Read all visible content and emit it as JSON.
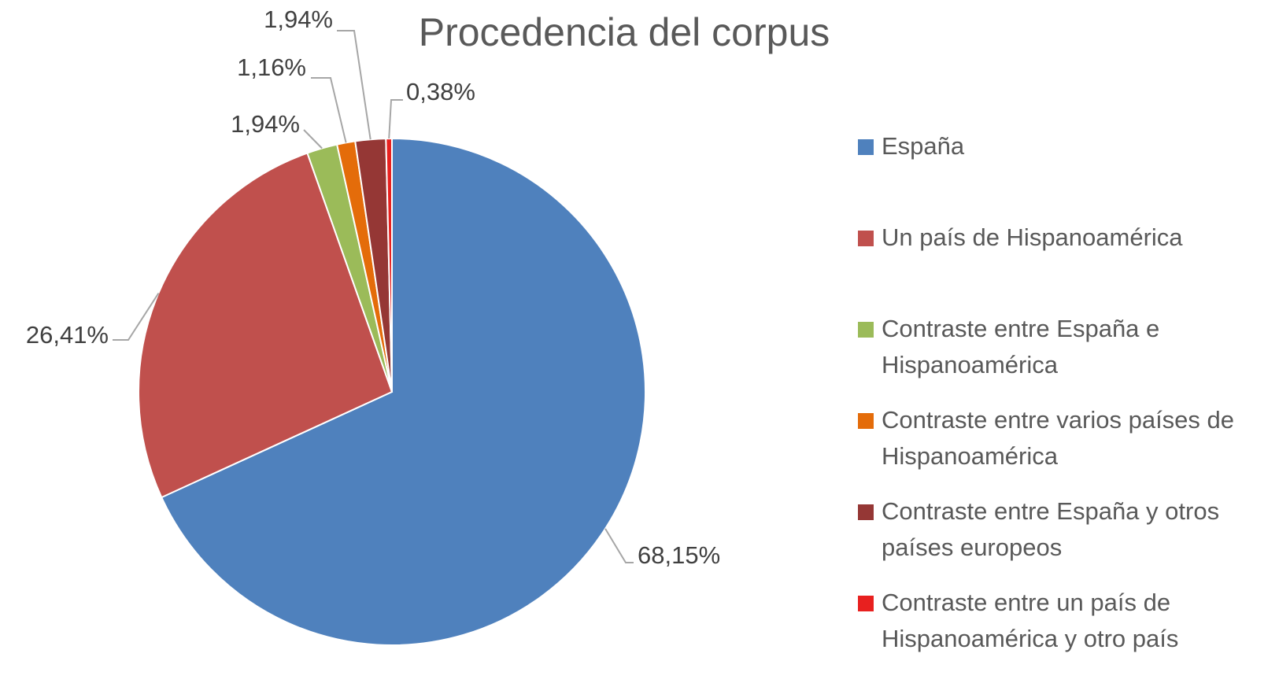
{
  "chart_data": {
    "type": "pie",
    "title": "Procedencia del corpus",
    "categories": [
      "España",
      "Un país de Hispanoamérica",
      "Contraste entre España e Hispanoamérica",
      "Contraste entre varios países de Hispanoamérica",
      "Contraste entre España y otros países europeos",
      "Contraste entre un país de Hispanoamérica y otro país"
    ],
    "legend_lines": [
      [
        "España"
      ],
      [
        "Un país de Hispanoamérica"
      ],
      [
        "Contraste entre España e",
        "Hispanoamérica"
      ],
      [
        "Contraste entre varios países de",
        "Hispanoamérica"
      ],
      [
        "Contraste entre España y otros",
        "países europeos"
      ],
      [
        "Contraste entre un país de",
        "Hispanoamérica y otro país"
      ]
    ],
    "values": [
      68.15,
      26.41,
      1.94,
      1.16,
      1.94,
      0.38
    ],
    "labels": [
      "68,15%",
      "26,41%",
      "1,94%",
      "1,16%",
      "1,94%",
      "0,38%"
    ],
    "colors": [
      "#4f81bd",
      "#c0504d",
      "#9bbb59",
      "#e46c0a",
      "#953735",
      "#e8201f"
    ],
    "legend_position": "right"
  }
}
